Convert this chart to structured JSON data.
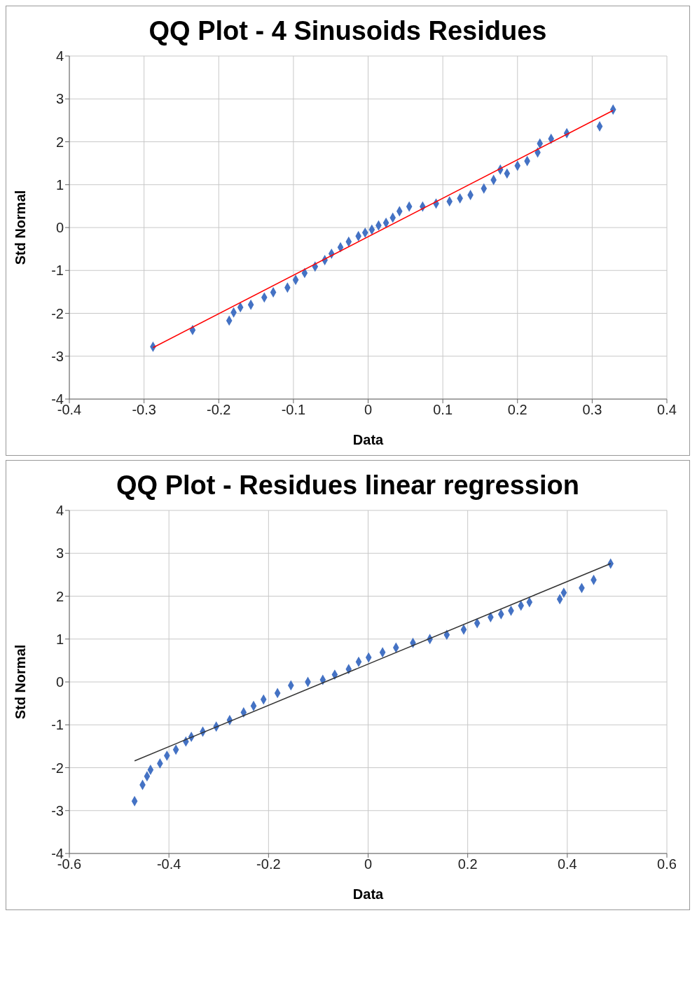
{
  "chart_data": [
    {
      "type": "scatter",
      "title": "QQ Plot - 4 Sinusoids Residues",
      "xlabel": "Data",
      "ylabel": "Std Normal",
      "xlim": [
        -0.4,
        0.4
      ],
      "xticks": [
        -0.4,
        -0.3,
        -0.2,
        -0.1,
        0,
        0.1,
        0.2,
        0.3,
        0.4
      ],
      "ylim": [
        -4,
        4
      ],
      "yticks": [
        -4,
        -3,
        -2,
        -1,
        0,
        1,
        2,
        3,
        4
      ],
      "grid": true,
      "legend": false,
      "series": [
        {
          "marker": "diamond",
          "color": "#4472c4",
          "x": [
            -0.288,
            -0.235,
            -0.186,
            -0.18,
            -0.171,
            -0.157,
            -0.139,
            -0.127,
            -0.108,
            -0.097,
            -0.085,
            -0.071,
            -0.058,
            -0.049,
            -0.037,
            -0.026,
            -0.013,
            -0.004,
            0.005,
            0.014,
            0.024,
            0.033,
            0.042,
            0.055,
            0.073,
            0.091,
            0.109,
            0.123,
            0.137,
            0.155,
            0.168,
            0.177,
            0.186,
            0.2,
            0.213,
            0.227,
            0.23,
            0.245,
            0.266,
            0.31,
            0.328
          ],
          "values": [
            -2.78,
            -2.39,
            -2.17,
            -1.98,
            -1.86,
            -1.8,
            -1.63,
            -1.51,
            -1.4,
            -1.22,
            -1.06,
            -0.91,
            -0.76,
            -0.61,
            -0.46,
            -0.33,
            -0.2,
            -0.12,
            -0.05,
            0.05,
            0.11,
            0.23,
            0.38,
            0.49,
            0.49,
            0.56,
            0.61,
            0.68,
            0.76,
            0.91,
            1.11,
            1.35,
            1.26,
            1.44,
            1.55,
            1.75,
            1.96,
            2.07,
            2.2,
            2.36,
            2.75
          ]
        },
        {
          "type": "line",
          "color": "#ff0000",
          "x": [
            -0.288,
            0.328
          ],
          "values": [
            -2.8,
            2.73
          ]
        }
      ]
    },
    {
      "type": "scatter",
      "title": "QQ Plot - Residues linear regression",
      "xlabel": "Data",
      "ylabel": "Std Normal",
      "xlim": [
        -0.6,
        0.6
      ],
      "xticks": [
        -0.6,
        -0.4,
        -0.2,
        0,
        0.2,
        0.4,
        0.6
      ],
      "ylim": [
        -4,
        4
      ],
      "yticks": [
        -4,
        -3,
        -2,
        -1,
        0,
        1,
        2,
        3,
        4
      ],
      "grid": true,
      "legend": false,
      "series": [
        {
          "marker": "diamond",
          "color": "#4472c4",
          "x": [
            -0.469,
            -0.453,
            -0.444,
            -0.437,
            -0.418,
            -0.404,
            -0.386,
            -0.366,
            -0.355,
            -0.332,
            -0.305,
            -0.278,
            -0.25,
            -0.23,
            -0.21,
            -0.182,
            -0.155,
            -0.121,
            -0.091,
            -0.067,
            -0.039,
            -0.019,
            0.001,
            0.029,
            0.056,
            0.09,
            0.124,
            0.158,
            0.192,
            0.219,
            0.246,
            0.267,
            0.287,
            0.307,
            0.324,
            0.385,
            0.393,
            0.429,
            0.453,
            0.487
          ],
          "values": [
            -2.78,
            -2.4,
            -2.2,
            -2.05,
            -1.9,
            -1.72,
            -1.58,
            -1.39,
            -1.28,
            -1.16,
            -1.04,
            -0.89,
            -0.71,
            -0.56,
            -0.41,
            -0.26,
            -0.08,
            0,
            0.05,
            0.17,
            0.3,
            0.47,
            0.57,
            0.69,
            0.8,
            0.91,
            1.0,
            1.1,
            1.22,
            1.37,
            1.51,
            1.58,
            1.66,
            1.78,
            1.86,
            1.93,
            2.08,
            2.19,
            2.38,
            2.76
          ]
        },
        {
          "type": "line",
          "color": "#333333",
          "x": [
            -0.469,
            0.487
          ],
          "values": [
            -1.84,
            2.76
          ]
        }
      ]
    }
  ]
}
